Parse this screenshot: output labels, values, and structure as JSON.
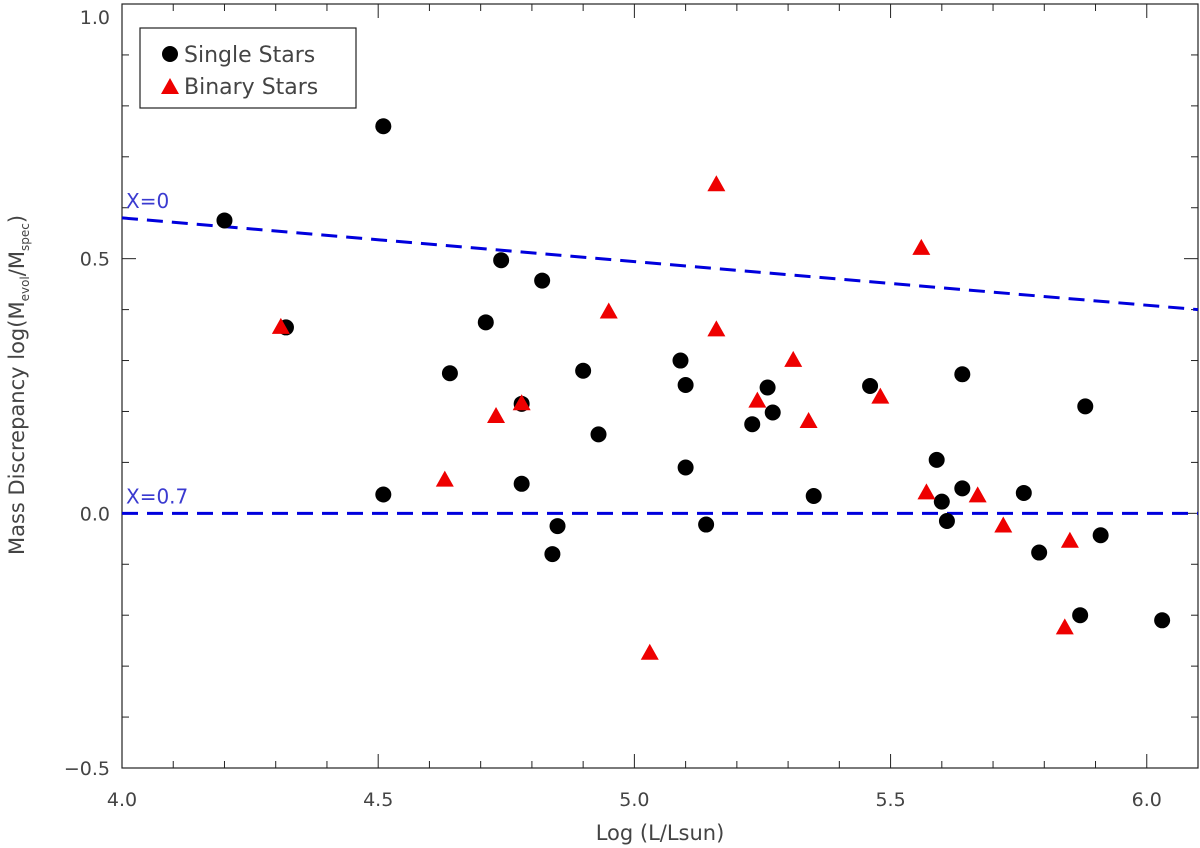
{
  "chart_data": {
    "type": "scatter",
    "xlabel": "Log (L/Lsun)",
    "ylabel": {
      "prefix": "Mass Discrepancy log(M",
      "sub1": "evol",
      "mid": "/M",
      "sub2": "spec",
      "suffix": ")"
    },
    "xlim": [
      4.0,
      6.1
    ],
    "ylim": [
      -0.5,
      1.0
    ],
    "x_ticks": [
      4.0,
      4.5,
      5.0,
      5.5,
      6.0
    ],
    "x_tick_labels": [
      "4.0",
      "4.5",
      "5.0",
      "5.5",
      "6.0"
    ],
    "y_ticks": [
      -0.5,
      0.0,
      0.5,
      1.0
    ],
    "y_tick_labels": [
      "−0.5",
      "0.0",
      "0.5",
      "1.0"
    ],
    "legend": {
      "position": "top-left",
      "entries": [
        {
          "label": "Single Stars",
          "marker": "circle",
          "color": "#000000"
        },
        {
          "label": "Binary Stars",
          "marker": "triangle",
          "color": "#ee0000"
        }
      ]
    },
    "reference_lines": [
      {
        "label": "X=0",
        "x": [
          4.0,
          6.1
        ],
        "y": [
          0.58,
          0.4
        ],
        "color": "#0000dd"
      },
      {
        "label": "X=0.7",
        "x": [
          4.0,
          6.1
        ],
        "y": [
          0.0,
          0.0
        ],
        "color": "#0000dd"
      }
    ],
    "series": [
      {
        "name": "Single Stars",
        "marker": "circle",
        "color": "#000000",
        "points": [
          [
            4.2,
            0.575
          ],
          [
            4.32,
            0.365
          ],
          [
            4.51,
            0.76
          ],
          [
            4.51,
            0.037
          ],
          [
            4.64,
            0.275
          ],
          [
            4.71,
            0.375
          ],
          [
            4.74,
            0.497
          ],
          [
            4.78,
            0.215
          ],
          [
            4.78,
            0.058
          ],
          [
            4.82,
            0.457
          ],
          [
            4.84,
            -0.08
          ],
          [
            4.85,
            -0.025
          ],
          [
            4.9,
            0.28
          ],
          [
            4.93,
            0.155
          ],
          [
            5.09,
            0.3
          ],
          [
            5.1,
            0.252
          ],
          [
            5.1,
            0.09
          ],
          [
            5.14,
            -0.022
          ],
          [
            5.23,
            0.175
          ],
          [
            5.26,
            0.247
          ],
          [
            5.27,
            0.198
          ],
          [
            5.35,
            0.034
          ],
          [
            5.46,
            0.25
          ],
          [
            5.59,
            0.105
          ],
          [
            5.6,
            0.023
          ],
          [
            5.61,
            -0.015
          ],
          [
            5.64,
            0.273
          ],
          [
            5.64,
            0.049
          ],
          [
            5.76,
            0.04
          ],
          [
            5.79,
            -0.077
          ],
          [
            5.87,
            -0.2
          ],
          [
            5.88,
            0.21
          ],
          [
            5.91,
            -0.043
          ],
          [
            6.03,
            -0.21
          ]
        ]
      },
      {
        "name": "Binary Stars",
        "marker": "triangle",
        "color": "#ee0000",
        "points": [
          [
            4.31,
            0.365
          ],
          [
            4.63,
            0.065
          ],
          [
            4.73,
            0.19
          ],
          [
            4.78,
            0.215
          ],
          [
            4.95,
            0.395
          ],
          [
            5.03,
            -0.275
          ],
          [
            5.16,
            0.645
          ],
          [
            5.16,
            0.36
          ],
          [
            5.24,
            0.22
          ],
          [
            5.31,
            0.3
          ],
          [
            5.34,
            0.18
          ],
          [
            5.48,
            0.228
          ],
          [
            5.56,
            0.52
          ],
          [
            5.57,
            0.04
          ],
          [
            5.67,
            0.034
          ],
          [
            5.72,
            -0.025
          ],
          [
            5.84,
            -0.225
          ],
          [
            5.85,
            -0.055
          ]
        ]
      }
    ]
  }
}
